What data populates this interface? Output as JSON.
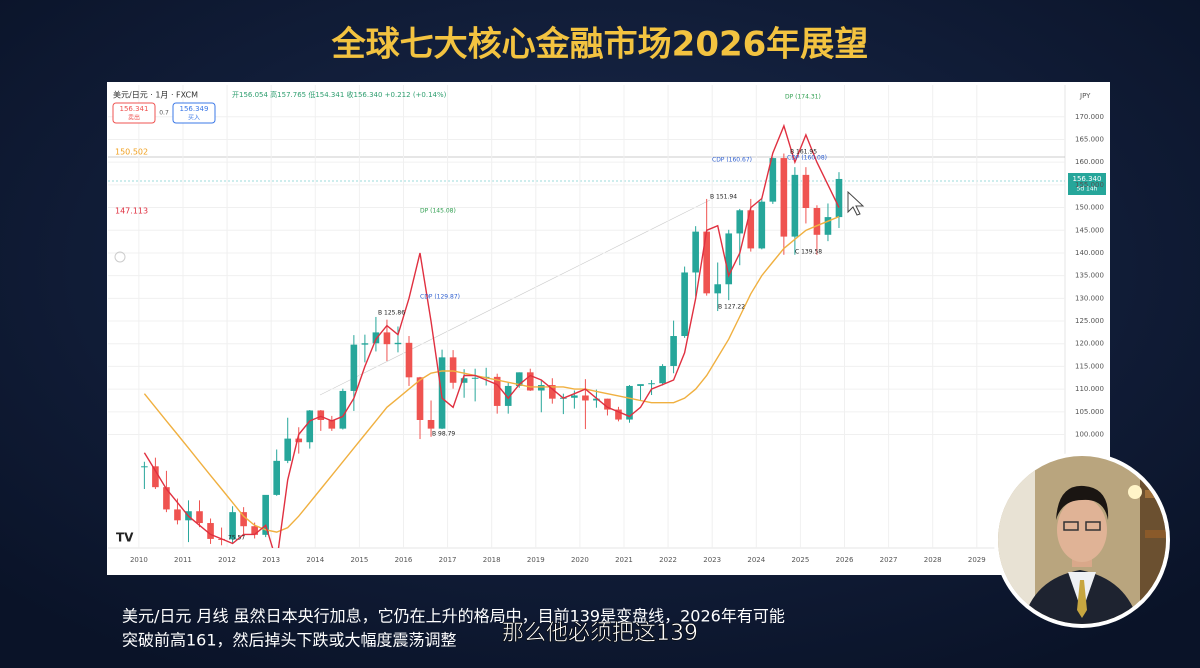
{
  "header": {
    "title": "全球七大核心金融市场2026年展望"
  },
  "chart_data": {
    "type": "candlestick",
    "symbol": "美元/日元 · 1月 · FXCM",
    "quote": "开156.054 高157.765 低154.341 收156.340 +0.212 (+0.14%)",
    "sell": {
      "price": "156.341",
      "label": "卖出"
    },
    "spread": "0.7",
    "buy": {
      "price": "156.349",
      "label": "买入"
    },
    "currency": "JPY",
    "last_price": "156.340",
    "countdown": "5d 14h",
    "ma_labels": [
      {
        "text": "150.502",
        "color": "#f0a020"
      },
      {
        "text": "147.113",
        "color": "#e03040"
      }
    ],
    "up_color": "#26a69a",
    "down_color": "#ef5350",
    "x": [
      2010.125,
      2010.375,
      2010.625,
      2010.875,
      2011.125,
      2011.375,
      2011.625,
      2011.875,
      2012.125,
      2012.375,
      2012.625,
      2012.875,
      2013.125,
      2013.375,
      2013.625,
      2013.875,
      2014.125,
      2014.375,
      2014.625,
      2014.875,
      2015.125,
      2015.375,
      2015.625,
      2015.875,
      2016.125,
      2016.375,
      2016.625,
      2016.875,
      2017.125,
      2017.375,
      2017.625,
      2017.875,
      2018.125,
      2018.375,
      2018.625,
      2018.875,
      2019.125,
      2019.375,
      2019.625,
      2019.875,
      2020.125,
      2020.375,
      2020.625,
      2020.875,
      2021.125,
      2021.375,
      2021.625,
      2021.875,
      2022.125,
      2022.375,
      2022.625,
      2022.875,
      2023.125,
      2023.375,
      2023.625,
      2023.875,
      2024.125,
      2024.375,
      2024.625,
      2024.875,
      2025.125,
      2025.375,
      2025.625,
      2025.875
    ],
    "open": [
      93,
      93,
      88.4,
      83.5,
      81.1,
      83.1,
      80.5,
      77,
      76.9,
      82.9,
      79.8,
      77.9,
      86.7,
      94.2,
      99.1,
      98.3,
      105.3,
      103.2,
      101.3,
      109.6,
      119.8,
      120.1,
      122.5,
      119.9,
      120.2,
      112.6,
      103.2,
      101.3,
      117,
      111.4,
      112.4,
      112.5,
      112.7,
      106.3,
      110.7,
      113.7,
      109.7,
      110.9,
      107.9,
      108.1,
      108.6,
      107.5,
      107.9,
      105.5,
      103.3,
      110.7,
      111.1,
      111.3,
      115.1,
      121.7,
      135.7,
      144.7,
      131.1,
      133.1,
      144.3,
      149.4,
      141,
      151.3,
      160.9,
      143.6,
      157.2,
      149.9,
      144,
      147.9
    ],
    "high": [
      94,
      94.9,
      92,
      85.9,
      85.5,
      85.5,
      81.5,
      79.5,
      84.2,
      84,
      80.6,
      86.6,
      96.7,
      103.7,
      101.6,
      105.4,
      105.4,
      104.1,
      110.1,
      121.9,
      122,
      125.9,
      125.3,
      123.8,
      121.7,
      112.7,
      107.5,
      118.7,
      118.6,
      114.4,
      114.5,
      114.7,
      113.4,
      111.4,
      113.7,
      114.5,
      112.1,
      112.4,
      109,
      109.7,
      112.2,
      109.9,
      107.9,
      106.1,
      110.9,
      111,
      112,
      115.5,
      125.1,
      137,
      145.9,
      151.9,
      137.9,
      145.1,
      149.7,
      151.9,
      151.9,
      161,
      161.9,
      158.9,
      158.9,
      150.5,
      150.9,
      157.8
    ],
    "low": [
      88,
      88,
      82.9,
      80.2,
      76.3,
      79.6,
      75.9,
      75.6,
      76,
      77.6,
      77.1,
      77.4,
      86.5,
      93.7,
      95.8,
      96.9,
      100.8,
      100.8,
      101.1,
      105.2,
      115.9,
      118.3,
      116.2,
      118.1,
      110.7,
      99,
      99.5,
      101.2,
      110.1,
      108.1,
      107.3,
      110.8,
      104.6,
      104.6,
      110.3,
      109.6,
      104.9,
      106.8,
      104.5,
      105.7,
      101.2,
      105.9,
      104.2,
      102.9,
      102.6,
      107.5,
      108.7,
      110.8,
      113.5,
      121.3,
      130.4,
      130.6,
      127.2,
      129.6,
      137.3,
      140.3,
      140.8,
      150.8,
      139.6,
      139.6,
      146.5,
      139.6,
      142.6,
      145.5
    ],
    "close": [
      93,
      88.4,
      83.5,
      81.1,
      83.1,
      80.5,
      77,
      76.9,
      82.9,
      79.8,
      77.9,
      86.7,
      94.2,
      99.1,
      98.3,
      105.3,
      103.2,
      101.3,
      109.6,
      119.8,
      120.1,
      122.5,
      119.9,
      120.2,
      112.6,
      103.2,
      101.3,
      117,
      111.4,
      112.4,
      112.5,
      112.7,
      106.3,
      110.7,
      113.7,
      109.7,
      110.9,
      107.9,
      108.1,
      108.6,
      107.5,
      107.9,
      105.5,
      103.3,
      110.7,
      111.1,
      111.3,
      115.1,
      121.7,
      135.7,
      144.7,
      131.1,
      133.1,
      144.3,
      149.4,
      141,
      151.3,
      160.9,
      143.6,
      157.2,
      149.9,
      144,
      147.9,
      156.3
    ],
    "lines": [
      {
        "color": "#f0b040",
        "values": [
          109,
          106,
          103,
          100,
          97,
          94,
          91,
          88,
          85,
          82,
          80,
          79,
          78.5,
          79.5,
          82,
          85,
          88,
          91,
          94,
          97,
          100,
          103,
          106,
          108,
          110,
          112,
          113.5,
          114,
          114,
          113.5,
          113,
          112.5,
          112,
          111.5,
          111,
          110.5,
          110.5,
          110.5,
          110.5,
          110,
          110,
          109.5,
          109,
          108.5,
          108,
          107.5,
          107,
          107,
          107,
          108,
          110,
          113,
          117,
          121,
          126,
          131,
          135,
          138,
          141,
          143,
          145,
          146,
          147,
          148
        ]
      },
      {
        "color": "#e03040",
        "values": [
          96,
          92,
          88,
          85,
          82,
          80,
          78,
          77,
          76,
          78,
          78,
          80,
          72,
          90,
          100,
          103,
          104,
          103,
          104,
          108,
          115,
          121,
          124,
          122,
          130,
          140,
          125,
          108,
          106,
          113,
          113,
          112,
          111,
          108,
          111,
          113,
          112,
          110,
          108,
          109,
          110,
          108,
          106,
          105,
          104,
          106,
          110,
          111,
          112,
          118,
          130,
          145,
          146,
          135,
          140,
          150,
          152,
          162,
          168,
          160,
          166,
          160,
          155,
          150
        ]
      }
    ],
    "annotations": [
      {
        "text": "DP (174.31)",
        "color": "#2e9e4f"
      },
      {
        "text": "B 161.95",
        "color": "#222222"
      },
      {
        "text": "CDP (160.08)",
        "color": "#3060d0"
      },
      {
        "text": "CDP (160.67)",
        "color": "#3060d0"
      },
      {
        "text": "B 151.94",
        "color": "#222222"
      },
      {
        "text": "C 139.58",
        "color": "#222222"
      },
      {
        "text": "B 127.22",
        "color": "#222222"
      },
      {
        "text": "DP (145.08)",
        "color": "#2e9e4f"
      },
      {
        "text": "CDP (129.87)",
        "color": "#3060d0"
      },
      {
        "text": "B 125.86",
        "color": "#222222"
      },
      {
        "text": "B 98.79",
        "color": "#222222"
      },
      {
        "text": "75.57",
        "color": "#222222"
      }
    ],
    "xlim": [
      2009.3,
      2031.0
    ],
    "ylim": [
      75,
      177
    ],
    "xticks": [
      2010,
      2011,
      2012,
      2013,
      2014,
      2015,
      2016,
      2017,
      2018,
      2019,
      2020,
      2021,
      2022,
      2023,
      2024,
      2025,
      2026,
      2027,
      2028,
      2029
    ],
    "yticks": [
      {
        "value": 100,
        "label": "100.000"
      },
      {
        "value": 105,
        "label": "105.000"
      },
      {
        "value": 110,
        "label": "110.000"
      },
      {
        "value": 115,
        "label": "115.000"
      },
      {
        "value": 120,
        "label": "120.000"
      },
      {
        "value": 125,
        "label": "125.000"
      },
      {
        "value": 130,
        "label": "130.000"
      },
      {
        "value": 135,
        "label": "135.000"
      },
      {
        "value": 140,
        "label": "140.000"
      },
      {
        "value": 145,
        "label": "145.000"
      },
      {
        "value": 150,
        "label": "150.000"
      },
      {
        "value": 155,
        "label": "155.000"
      },
      {
        "value": 160,
        "label": "160.000"
      },
      {
        "value": 165,
        "label": "165.000"
      },
      {
        "value": 170,
        "label": "170.000"
      }
    ],
    "grid": true
  },
  "subtitles": [
    "美元/日元 月线 虽然日本央行加息，它仍在上升的格局中，目前139是变盘线，2026年有可能",
    "突破前高161，然后掉头下跌或大幅度震荡调整"
  ],
  "caption": "那么他必须把这139"
}
